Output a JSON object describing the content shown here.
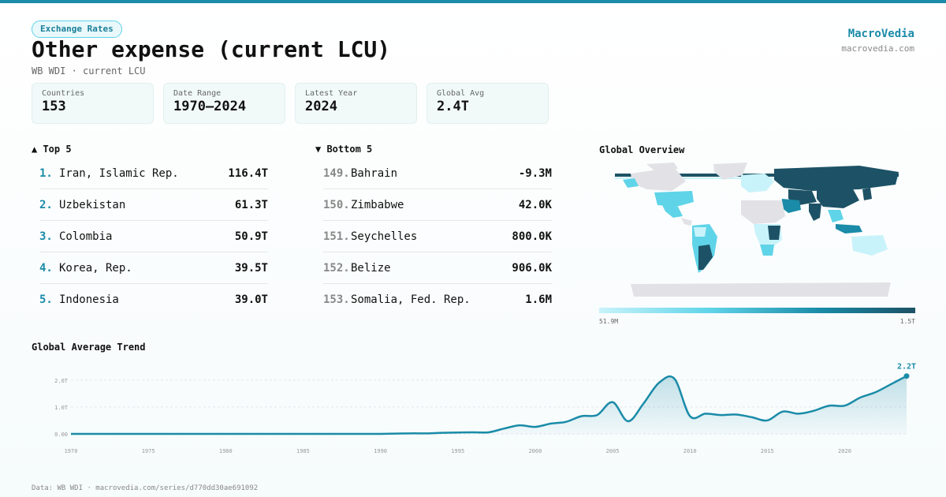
{
  "header": {
    "category": "Exchange Rates",
    "title": "Other expense (current LCU)",
    "subtitle": "WB WDI · current LCU",
    "brand": "MacroVedia",
    "brand_url": "macrovedia.com"
  },
  "stats": [
    {
      "label": "Countries",
      "value": "153"
    },
    {
      "label": "Date Range",
      "value": "1970–2024"
    },
    {
      "label": "Latest Year",
      "value": "2024"
    },
    {
      "label": "Global Avg",
      "value": "2.4T"
    }
  ],
  "top5": {
    "heading": "▲ Top 5",
    "items": [
      {
        "rank": "1.",
        "name": "Iran, Islamic Rep.",
        "value": "116.4T"
      },
      {
        "rank": "2.",
        "name": "Uzbekistan",
        "value": "61.3T"
      },
      {
        "rank": "3.",
        "name": "Colombia",
        "value": "50.9T"
      },
      {
        "rank": "4.",
        "name": "Korea, Rep.",
        "value": "39.5T"
      },
      {
        "rank": "5.",
        "name": "Indonesia",
        "value": "39.0T"
      }
    ]
  },
  "bottom5": {
    "heading": "▼ Bottom 5",
    "items": [
      {
        "rank": "149.",
        "name": "Bahrain",
        "value": "-9.3M"
      },
      {
        "rank": "150.",
        "name": "Zimbabwe",
        "value": "42.0K"
      },
      {
        "rank": "151.",
        "name": "Seychelles",
        "value": "800.0K"
      },
      {
        "rank": "152.",
        "name": "Belize",
        "value": "906.0K"
      },
      {
        "rank": "153.",
        "name": "Somalia, Fed. Rep.",
        "value": "1.6M"
      }
    ]
  },
  "map": {
    "heading": "Global Overview",
    "legend_min": "51.9M",
    "legend_max": "1.5T",
    "colors": {
      "no_data": "#e2e2e6",
      "low": "#c9f3fa",
      "mid_low": "#5fd4e8",
      "mid_high": "#1a8ba8",
      "high": "#1d5266"
    }
  },
  "trend": {
    "heading": "Global Average Trend",
    "last_label": "2.2T",
    "line_color": "#1a8ba8"
  },
  "chart_data": {
    "type": "area",
    "title": "Global Average Trend",
    "xlabel": "",
    "ylabel": "",
    "ylim": [
      0,
      2200000000000
    ],
    "xlim": [
      1970,
      2024
    ],
    "y_ticks": [
      {
        "v": 0,
        "label": "0.00"
      },
      {
        "v": 1000000000000,
        "label": "1.0T"
      },
      {
        "v": 2000000000000,
        "label": "2.0T"
      }
    ],
    "x_ticks": [
      1970,
      1975,
      1980,
      1985,
      1990,
      1995,
      2000,
      2005,
      2010,
      2015,
      2020
    ],
    "grid": true,
    "series": [
      {
        "x": [
          1970,
          1971,
          1972,
          1973,
          1974,
          1975,
          1976,
          1977,
          1978,
          1979,
          1980,
          1981,
          1982,
          1983,
          1984,
          1985,
          1986,
          1987,
          1988,
          1989,
          1990,
          1991,
          1992,
          1993,
          1994,
          1995,
          1996,
          1997,
          1998,
          1999,
          2000,
          2001,
          2002,
          2003,
          2004,
          2005,
          2006,
          2007,
          2008,
          2009,
          2010,
          2011,
          2012,
          2013,
          2014,
          2015,
          2016,
          2017,
          2018,
          2019,
          2020,
          2021,
          2022,
          2023,
          2024
        ],
        "values": [
          0,
          0,
          0,
          0,
          0,
          0,
          0,
          0,
          0,
          0,
          0,
          0,
          0,
          0,
          0,
          0,
          0,
          0,
          0,
          0,
          0,
          10000000000,
          20000000000,
          20000000000,
          40000000000,
          50000000000,
          60000000000,
          60000000000,
          200000000000,
          320000000000,
          260000000000,
          380000000000,
          450000000000,
          660000000000,
          700000000000,
          1180000000000,
          470000000000,
          1130000000000,
          1900000000000,
          2050000000000,
          660000000000,
          750000000000,
          700000000000,
          720000000000,
          620000000000,
          500000000000,
          830000000000,
          750000000000,
          860000000000,
          1050000000000,
          1050000000000,
          1350000000000,
          1550000000000,
          1850000000000,
          2150000000000
        ]
      }
    ]
  }
}
